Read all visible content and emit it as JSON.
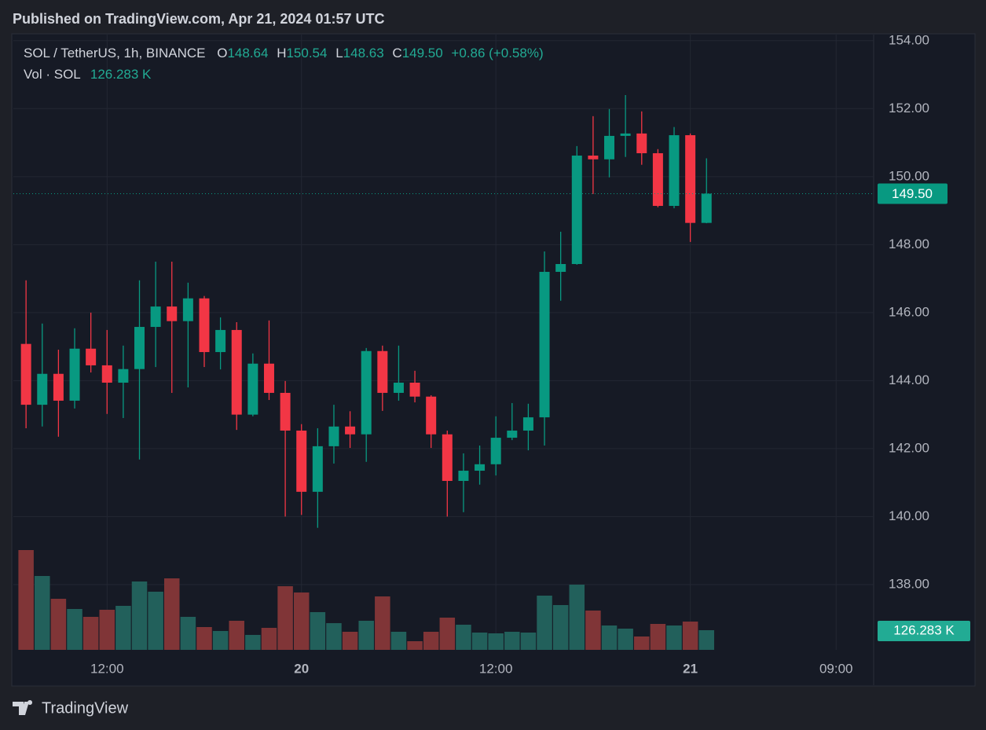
{
  "chart_data": {
    "type": "candlestick",
    "header": "Published on TradingView.com, Apr 21, 2024 01:57 UTC",
    "title": "SOL / TetherUS, 1h, BINANCE",
    "legend_keys": [
      "O",
      "H",
      "L",
      "C"
    ],
    "close_label": "149.50",
    "change_label": "+0.86 (+0.58%)",
    "volume_title": "Vol · SOL",
    "volume_label": "126.283 K",
    "brand": "TradingView",
    "x": [
      "2024-04-19T07:00Z",
      "2024-04-19T08:00Z",
      "2024-04-19T09:00Z",
      "2024-04-19T10:00Z",
      "2024-04-19T11:00Z",
      "2024-04-19T12:00Z",
      "2024-04-19T13:00Z",
      "2024-04-19T14:00Z",
      "2024-04-19T15:00Z",
      "2024-04-19T16:00Z",
      "2024-04-19T17:00Z",
      "2024-04-19T18:00Z",
      "2024-04-19T19:00Z",
      "2024-04-19T20:00Z",
      "2024-04-19T21:00Z",
      "2024-04-19T22:00Z",
      "2024-04-19T23:00Z",
      "2024-04-20T00:00Z",
      "2024-04-20T01:00Z",
      "2024-04-20T02:00Z",
      "2024-04-20T03:00Z",
      "2024-04-20T04:00Z",
      "2024-04-20T05:00Z",
      "2024-04-20T06:00Z",
      "2024-04-20T07:00Z",
      "2024-04-20T08:00Z",
      "2024-04-20T09:00Z",
      "2024-04-20T10:00Z",
      "2024-04-20T11:00Z",
      "2024-04-20T12:00Z",
      "2024-04-20T13:00Z",
      "2024-04-20T14:00Z",
      "2024-04-20T15:00Z",
      "2024-04-20T16:00Z",
      "2024-04-20T17:00Z",
      "2024-04-20T18:00Z",
      "2024-04-20T19:00Z",
      "2024-04-20T20:00Z",
      "2024-04-20T21:00Z",
      "2024-04-20T22:00Z",
      "2024-04-20T23:00Z",
      "2024-04-21T00:00Z",
      "2024-04-21T01:00Z"
    ],
    "open": [
      145.08,
      143.29,
      144.2,
      143.41,
      144.94,
      144.45,
      143.94,
      144.34,
      145.58,
      146.18,
      145.75,
      146.42,
      144.84,
      145.49,
      143.0,
      144.5,
      143.64,
      142.53,
      140.73,
      142.07,
      142.65,
      142.42,
      144.87,
      143.64,
      143.94,
      143.53,
      142.42,
      141.05,
      141.35,
      141.54,
      142.32,
      142.53,
      142.92,
      147.2,
      147.43,
      150.62,
      150.51,
      151.2,
      151.27,
      150.69,
      149.14,
      151.22,
      148.64
    ],
    "high": [
      146.95,
      145.68,
      144.91,
      145.54,
      146.0,
      145.49,
      145.03,
      146.95,
      147.5,
      147.5,
      146.88,
      146.49,
      145.86,
      145.72,
      144.8,
      145.77,
      143.99,
      142.72,
      142.6,
      143.29,
      143.1,
      144.96,
      145.03,
      145.03,
      144.29,
      143.57,
      142.53,
      141.86,
      142.09,
      142.95,
      143.34,
      143.32,
      147.8,
      148.38,
      150.9,
      151.78,
      151.99,
      152.4,
      151.92,
      150.81,
      151.46,
      151.27,
      150.54
    ],
    "low": [
      142.6,
      142.65,
      142.35,
      143.18,
      144.24,
      143.02,
      142.9,
      141.68,
      144.4,
      143.64,
      143.8,
      144.4,
      144.33,
      142.55,
      142.95,
      143.43,
      140.0,
      140.05,
      139.67,
      141.56,
      142.02,
      141.61,
      143.11,
      143.41,
      143.36,
      142.02,
      140.0,
      140.13,
      140.94,
      141.21,
      142.25,
      141.95,
      142.09,
      146.35,
      147.41,
      149.49,
      149.98,
      150.58,
      150.35,
      149.1,
      149.07,
      148.08,
      148.63
    ],
    "close": [
      143.29,
      144.2,
      143.41,
      144.94,
      144.45,
      143.94,
      144.34,
      145.58,
      146.18,
      145.75,
      146.42,
      144.84,
      145.49,
      143.0,
      144.5,
      143.64,
      142.53,
      140.73,
      142.07,
      142.65,
      142.42,
      144.87,
      143.64,
      143.94,
      143.53,
      142.42,
      141.05,
      141.35,
      141.54,
      142.32,
      142.53,
      142.92,
      147.2,
      147.43,
      150.62,
      150.51,
      151.2,
      151.27,
      150.69,
      149.14,
      151.22,
      148.64,
      149.5
    ],
    "volume": [
      641.5,
      474.8,
      328.3,
      262.7,
      212.1,
      257.6,
      282.9,
      439.4,
      373.8,
      459.6,
      212.1,
      146.5,
      121.2,
      186.9,
      96.0,
      141.4,
      409.1,
      368.7,
      242.5,
      171.7,
      116.2,
      186.9,
      343.5,
      116.2,
      55.6,
      116.2,
      207.1,
      161.6,
      111.1,
      106.1,
      116.2,
      111.1,
      348.5,
      287.9,
      419.2,
      252.6,
      156.6,
      136.4,
      85.9,
      166.7,
      156.6,
      181.8,
      126.283
    ],
    "up_color": "#089981",
    "down_color": "#f23645",
    "volume_up_color": "#22605b",
    "volume_down_color": "#803537",
    "ylim": [
      136.08,
      154.18
    ],
    "yticks": [
      {
        "value": 138,
        "label": "138.00"
      },
      {
        "value": 140,
        "label": "140.00"
      },
      {
        "value": 142,
        "label": "142.00"
      },
      {
        "value": 144,
        "label": "144.00"
      },
      {
        "value": 146,
        "label": "146.00"
      },
      {
        "value": 148,
        "label": "148.00"
      },
      {
        "value": 150,
        "label": "150.00"
      },
      {
        "value": 152,
        "label": "152.00"
      },
      {
        "value": 154,
        "label": "154.00"
      }
    ],
    "xlim": [
      "2024-04-19T06:13Z",
      "2024-04-21T11:19Z"
    ],
    "xticks": [
      {
        "value": "2024-04-19T12:00Z",
        "label": "12:00"
      },
      {
        "value": "2024-04-20T00:00Z",
        "label": "20"
      },
      {
        "value": "2024-04-20T12:00Z",
        "label": "12:00"
      },
      {
        "value": "2024-04-21T00:00Z",
        "label": "21"
      },
      {
        "value": "2024-04-21T09:00Z",
        "label": "09:00"
      }
    ],
    "grid": true
  }
}
